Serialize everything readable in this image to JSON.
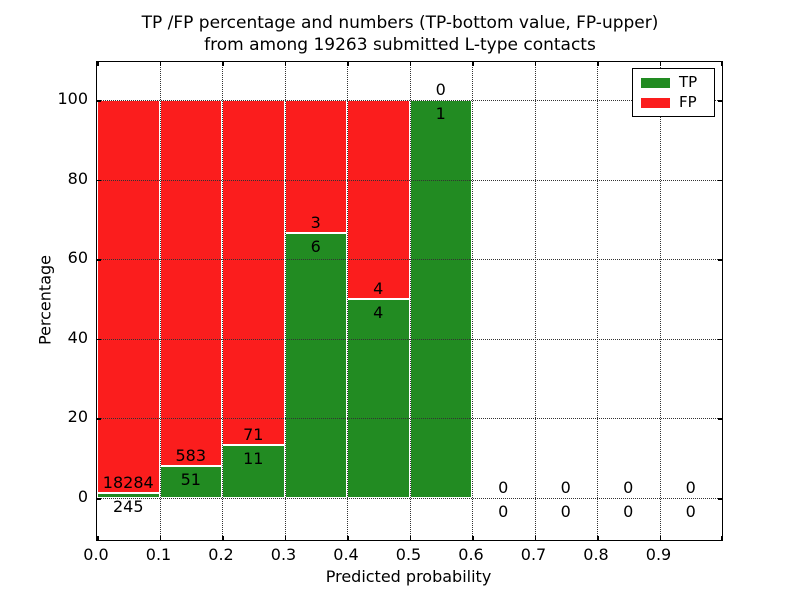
{
  "title": {
    "line1": "TP /FP percentage and numbers (TP-bottom value, FP-upper)",
    "line2": "from among 19263 submitted L-type contacts"
  },
  "axes": {
    "xlabel": "Predicted probability",
    "ylabel": "Percentage"
  },
  "legend": {
    "position": "upper right",
    "items": [
      {
        "label": "TP",
        "color": "#228b22"
      },
      {
        "label": "FP",
        "color": "#fb1d1d"
      }
    ]
  },
  "chart_data": {
    "type": "bar",
    "stacked": true,
    "normalized_to_percent": true,
    "title": "TP /FP percentage and numbers (TP-bottom value, FP-upper) from among 19263 submitted L-type contacts",
    "xlabel": "Predicted probability",
    "ylabel": "Percentage",
    "total_contacts": 19263,
    "bin_width": 0.1,
    "bin_starts": [
      0.0,
      0.1,
      0.2,
      0.3,
      0.4,
      0.5,
      0.6,
      0.7,
      0.8,
      0.9
    ],
    "xtick_labels": [
      "0.0",
      "0.1",
      "0.2",
      "0.3",
      "0.4",
      "0.5",
      "0.6",
      "0.7",
      "0.8",
      "0.9"
    ],
    "yticks": [
      0,
      20,
      40,
      60,
      80,
      100
    ],
    "ytick_labels": [
      "0",
      "20",
      "40",
      "60",
      "80",
      "100"
    ],
    "ylim_shown": [
      0,
      100
    ],
    "grid": {
      "style": "dotted",
      "horizontal": true,
      "vertical": true,
      "above_bars": true
    },
    "legend_position": "upper right",
    "series": [
      {
        "name": "TP",
        "color": "#228b22",
        "counts": [
          245,
          51,
          11,
          6,
          4,
          1,
          0,
          0,
          0,
          0
        ]
      },
      {
        "name": "FP",
        "color": "#fb1d1d",
        "counts": [
          18284,
          583,
          71,
          3,
          4,
          0,
          0,
          0,
          0,
          0
        ]
      }
    ],
    "tp_percent_per_bin": [
      1.32,
      8.04,
      13.41,
      66.67,
      50.0,
      100.0,
      null,
      null,
      null,
      null
    ]
  }
}
